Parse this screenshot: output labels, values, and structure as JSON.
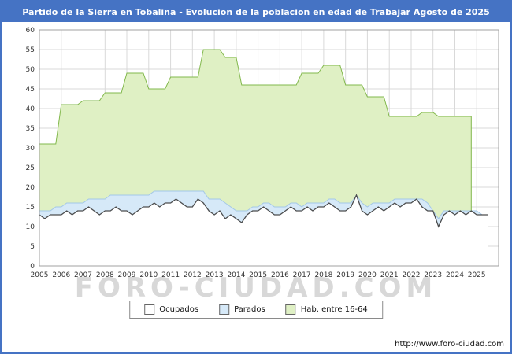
{
  "title": "Partido de la Sierra en Tobalina - Evolucion de la poblacion en edad de Trabajar Agosto de 2025",
  "watermark": "FORO-CIUDAD.COM",
  "footer_url": "http://www.foro-ciudad.com",
  "colors": {
    "title_bar": "#4573c4",
    "frame_border": "#4573c4",
    "grid": "#d9d9d9",
    "plot_border": "#a0a0a0",
    "axis_text": "#333333",
    "watermark": "#d8d8d8"
  },
  "chart_data": {
    "type": "area",
    "title": "Partido de la Sierra en Tobalina - Evolucion de la poblacion en edad de Trabajar Agosto de 2025",
    "xlabel": "",
    "ylabel": "",
    "xlim": [
      2005,
      2026
    ],
    "ylim": [
      0,
      60
    ],
    "grid": true,
    "legend_position": "bottom",
    "y_ticks": [
      0,
      5,
      10,
      15,
      20,
      25,
      30,
      35,
      40,
      45,
      50,
      55,
      60
    ],
    "x_ticks": [
      2005,
      2006,
      2007,
      2008,
      2009,
      2010,
      2011,
      2012,
      2013,
      2014,
      2015,
      2016,
      2017,
      2018,
      2019,
      2020,
      2021,
      2022,
      2023,
      2024,
      2025
    ],
    "x_start": 2005,
    "x_step": 0.25,
    "series": [
      {
        "name": "Ocupados",
        "color_fill": "#ffffff",
        "color_line": "#4d4d4d",
        "values": [
          13,
          12,
          13,
          13,
          13,
          14,
          13,
          14,
          14,
          15,
          14,
          13,
          14,
          14,
          15,
          14,
          14,
          13,
          14,
          15,
          15,
          16,
          15,
          16,
          16,
          17,
          16,
          15,
          15,
          17,
          16,
          14,
          13,
          14,
          12,
          13,
          12,
          11,
          13,
          14,
          14,
          15,
          14,
          13,
          13,
          14,
          15,
          14,
          14,
          15,
          14,
          15,
          15,
          16,
          15,
          14,
          14,
          15,
          18,
          14,
          13,
          14,
          15,
          14,
          15,
          16,
          15,
          16,
          16,
          17,
          15,
          14,
          14,
          10,
          13,
          14,
          13,
          14,
          13,
          14,
          13,
          13,
          13
        ]
      },
      {
        "name": "Parados",
        "color_fill": "#d6e9f8",
        "color_line": "#a3c7e8",
        "stacked_on": "Ocupados",
        "values": [
          1,
          2,
          1,
          2,
          2,
          2,
          3,
          2,
          2,
          2,
          3,
          4,
          3,
          4,
          3,
          4,
          4,
          5,
          4,
          3,
          3,
          3,
          4,
          3,
          3,
          2,
          3,
          4,
          4,
          2,
          3,
          3,
          4,
          3,
          4,
          2,
          2,
          3,
          1,
          1,
          1,
          1,
          2,
          2,
          2,
          1,
          1,
          2,
          1,
          1,
          2,
          1,
          1,
          1,
          2,
          2,
          2,
          1,
          0,
          2,
          2,
          2,
          1,
          2,
          1,
          1,
          2,
          1,
          1,
          0,
          2,
          2,
          0,
          2,
          1,
          0,
          1,
          0,
          1,
          0,
          1,
          0,
          0
        ]
      },
      {
        "name": "Hab. entre 16-64",
        "color_fill": "#dff0c4",
        "color_line": "#82b84c",
        "values": [
          31,
          31,
          31,
          31,
          41,
          41,
          41,
          41,
          42,
          42,
          42,
          42,
          44,
          44,
          44,
          44,
          49,
          49,
          49,
          49,
          45,
          45,
          45,
          45,
          48,
          48,
          48,
          48,
          48,
          48,
          55,
          55,
          55,
          55,
          53,
          53,
          53,
          46,
          46,
          46,
          46,
          46,
          46,
          46,
          46,
          46,
          46,
          46,
          49,
          49,
          49,
          49,
          51,
          51,
          51,
          51,
          46,
          46,
          46,
          46,
          43,
          43,
          43,
          43,
          38,
          38,
          38,
          38,
          38,
          38,
          39,
          39,
          39,
          38,
          38,
          38,
          38,
          38,
          38,
          38,
          null,
          null,
          null
        ]
      }
    ]
  }
}
